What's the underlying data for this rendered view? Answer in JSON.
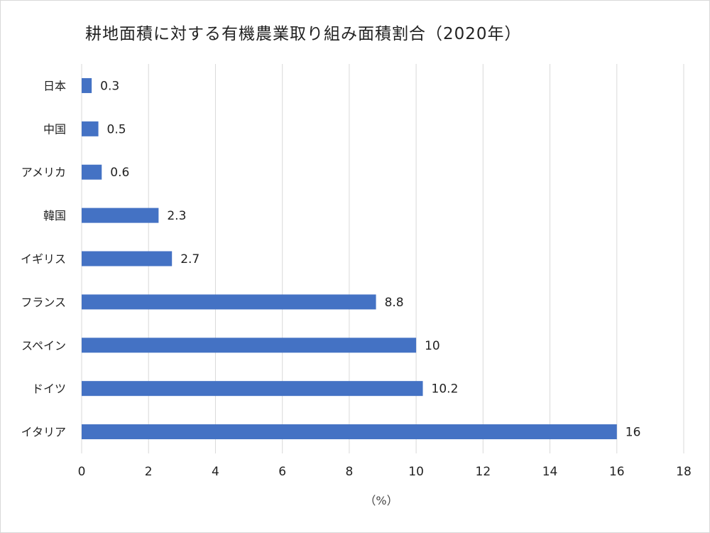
{
  "chart_data": {
    "type": "bar",
    "orientation": "horizontal",
    "title": "耕地面積に対する有機農業取り組み面積割合（2020年）",
    "xlabel": "（%）",
    "ylabel": "",
    "categories": [
      "日本",
      "中国",
      "アメリカ",
      "韓国",
      "イギリス",
      "フランス",
      "スペイン",
      "ドイツ",
      "イタリア"
    ],
    "values": [
      0.3,
      0.5,
      0.6,
      2.3,
      2.7,
      8.8,
      10,
      10.2,
      16
    ],
    "data_labels": [
      "0.3",
      "0.5",
      "0.6",
      "2.3",
      "2.7",
      "8.8",
      "10",
      "10.2",
      "16"
    ],
    "xlim": [
      0,
      18
    ],
    "x_ticks": [
      0,
      2,
      4,
      6,
      8,
      10,
      12,
      14,
      16,
      18
    ],
    "grid": "vertical",
    "legend": "none",
    "bar_color": "#4472C4",
    "gridline_color": "#d9d9d9"
  }
}
